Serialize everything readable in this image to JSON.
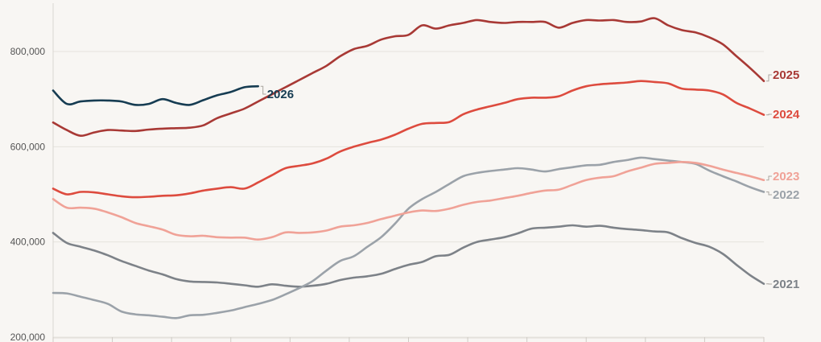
{
  "chart_data": {
    "type": "line",
    "title": "",
    "xlabel": "",
    "ylabel": "",
    "x_points": 53,
    "ylim": [
      200000,
      900000
    ],
    "y_ticks": [
      {
        "value": 200000,
        "label": "200,000"
      },
      {
        "value": 400000,
        "label": "400,000"
      },
      {
        "value": 600000,
        "label": "600,000"
      },
      {
        "value": 800000,
        "label": "800,000"
      }
    ],
    "series": [
      {
        "name": "2021",
        "label": "2021",
        "color": "#7d8288",
        "values": [
          419000,
          398000,
          390000,
          382000,
          372000,
          360000,
          350000,
          340000,
          332000,
          322000,
          317000,
          316000,
          315000,
          312000,
          309000,
          306000,
          311000,
          308000,
          306000,
          308000,
          312000,
          320000,
          325000,
          328000,
          333000,
          343000,
          352000,
          358000,
          370000,
          373000,
          388000,
          400000,
          405000,
          410000,
          418000,
          428000,
          430000,
          432000,
          435000,
          432000,
          434000,
          430000,
          427000,
          425000,
          422000,
          420000,
          408000,
          398000,
          390000,
          375000,
          352000,
          330000,
          312000
        ]
      },
      {
        "name": "2022",
        "label": "2022",
        "color": "#9ba2a9",
        "values": [
          293000,
          292000,
          285000,
          278000,
          270000,
          254000,
          248000,
          246000,
          243000,
          240000,
          246000,
          247000,
          251000,
          256000,
          263000,
          270000,
          278000,
          290000,
          303000,
          318000,
          340000,
          360000,
          370000,
          390000,
          410000,
          438000,
          470000,
          490000,
          505000,
          522000,
          538000,
          545000,
          549000,
          552000,
          555000,
          552000,
          548000,
          553000,
          557000,
          561000,
          562000,
          568000,
          572000,
          577000,
          574000,
          571000,
          568000,
          564000,
          550000,
          538000,
          527000,
          515000,
          505000
        ]
      },
      {
        "name": "2023",
        "label": "2023",
        "color": "#f0a297",
        "values": [
          490000,
          472000,
          472000,
          470000,
          462000,
          452000,
          440000,
          433000,
          426000,
          415000,
          412000,
          413000,
          410000,
          409000,
          409000,
          405000,
          410000,
          420000,
          419000,
          420000,
          424000,
          432000,
          435000,
          440000,
          448000,
          455000,
          462000,
          466000,
          465000,
          470000,
          478000,
          484000,
          487000,
          492000,
          497000,
          503000,
          508000,
          510000,
          520000,
          530000,
          535000,
          538000,
          548000,
          556000,
          564000,
          566000,
          568000,
          566000,
          560000,
          552000,
          545000,
          538000,
          530000
        ]
      },
      {
        "name": "2024",
        "label": "2024",
        "color": "#dd4b3e",
        "values": [
          512000,
          500000,
          505000,
          504000,
          500000,
          496000,
          494000,
          495000,
          497000,
          498000,
          502000,
          508000,
          512000,
          515000,
          512000,
          525000,
          540000,
          555000,
          560000,
          565000,
          575000,
          590000,
          600000,
          608000,
          615000,
          625000,
          638000,
          648000,
          650000,
          652000,
          668000,
          678000,
          685000,
          692000,
          700000,
          703000,
          703000,
          706000,
          718000,
          727000,
          731000,
          733000,
          735000,
          738000,
          736000,
          733000,
          722000,
          720000,
          718000,
          710000,
          692000,
          680000,
          667000
        ]
      },
      {
        "name": "2025",
        "label": "2025",
        "color": "#a83935",
        "values": [
          651000,
          635000,
          623000,
          630000,
          635000,
          634000,
          633000,
          636000,
          638000,
          639000,
          640000,
          645000,
          660000,
          670000,
          680000,
          695000,
          710000,
          725000,
          740000,
          755000,
          770000,
          790000,
          805000,
          812000,
          825000,
          832000,
          835000,
          855000,
          848000,
          855000,
          860000,
          866000,
          862000,
          860000,
          862000,
          862000,
          862000,
          850000,
          860000,
          866000,
          865000,
          866000,
          862000,
          863000,
          870000,
          855000,
          845000,
          840000,
          830000,
          815000,
          790000,
          765000,
          738000
        ]
      },
      {
        "name": "2026",
        "label": "2026",
        "color": "#163c52",
        "values": [
          718000,
          690000,
          695000,
          697000,
          697000,
          695000,
          688000,
          690000,
          700000,
          692000,
          688000,
          698000,
          708000,
          715000,
          725000,
          727000
        ]
      }
    ]
  }
}
